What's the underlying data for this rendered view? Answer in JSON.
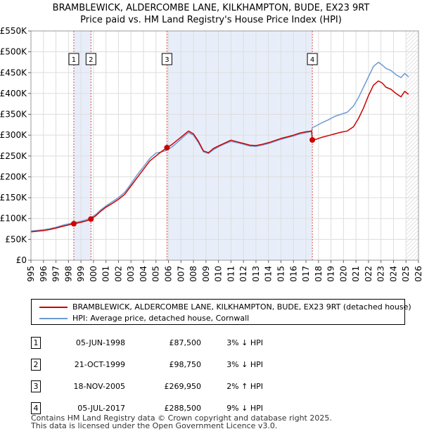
{
  "title_line1": "BRAMBLEWICK, ALDERCOMBE LANE, KILKHAMPTON, BUDE, EX23 9RT",
  "title_line2": "Price paid vs. HM Land Registry's House Price Index (HPI)",
  "chart_data": {
    "type": "line",
    "xlim": [
      1995,
      2026
    ],
    "ylim": [
      0,
      550000
    ],
    "y_ticks": [
      0,
      50000,
      100000,
      150000,
      200000,
      250000,
      300000,
      350000,
      400000,
      450000,
      500000,
      550000
    ],
    "y_tick_labels": [
      "£0",
      "£50K",
      "£100K",
      "£150K",
      "£200K",
      "£250K",
      "£300K",
      "£350K",
      "£400K",
      "£450K",
      "£500K",
      "£550K"
    ],
    "x_ticks": [
      1995,
      1996,
      1997,
      1998,
      1999,
      2000,
      2001,
      2002,
      2003,
      2004,
      2005,
      2006,
      2007,
      2008,
      2009,
      2010,
      2011,
      2012,
      2013,
      2014,
      2015,
      2016,
      2017,
      2018,
      2019,
      2020,
      2021,
      2022,
      2023,
      2024,
      2025,
      2026
    ],
    "shaded_ranges": [
      [
        1998.43,
        1999.8
      ],
      [
        2005.88,
        2017.51
      ]
    ],
    "future_hatch_from": 2025.0,
    "series": [
      {
        "name": "BRAMBLEWICK, ALDERCOMBE LANE, KILKHAMPTON, BUDE, EX23 9RT (detached house)",
        "color": "#cc0000",
        "x": [
          1995.0,
          1995.5,
          1996.0,
          1996.5,
          1997.0,
          1997.5,
          1998.0,
          1998.43,
          1999.0,
          1999.5,
          1999.8,
          2000.2,
          2000.6,
          2001.0,
          2001.5,
          2002.0,
          2002.5,
          2003.0,
          2003.5,
          2004.0,
          2004.5,
          2005.0,
          2005.5,
          2005.88,
          2006.3,
          2006.8,
          2007.2,
          2007.6,
          2008.0,
          2008.4,
          2008.8,
          2009.2,
          2009.6,
          2010.0,
          2010.5,
          2011.0,
          2011.5,
          2012.0,
          2012.5,
          2013.0,
          2013.5,
          2014.0,
          2014.5,
          2015.0,
          2015.5,
          2016.0,
          2016.5,
          2017.0,
          2017.45,
          2017.51,
          2017.8,
          2018.3,
          2018.8,
          2019.3,
          2019.8,
          2020.3,
          2020.8,
          2021.2,
          2021.6,
          2022.0,
          2022.4,
          2022.8,
          2023.1,
          2023.4,
          2023.8,
          2024.2,
          2024.6,
          2024.9,
          2025.2
        ],
        "y": [
          68000,
          69500,
          71000,
          73500,
          77000,
          81000,
          84500,
          87500,
          91000,
          95000,
          98750,
          107000,
          118000,
          127000,
          136000,
          146000,
          158000,
          178000,
          198000,
          218000,
          238000,
          250000,
          262000,
          269950,
          278000,
          290000,
          300000,
          310000,
          303000,
          285000,
          262000,
          258000,
          268000,
          274000,
          281000,
          288000,
          284000,
          280000,
          276000,
          275000,
          278000,
          282000,
          287000,
          292000,
          296000,
          300000,
          305000,
          308000,
          310000,
          288500,
          290000,
          295000,
          299000,
          303000,
          307000,
          310000,
          320000,
          340000,
          365000,
          395000,
          420000,
          430000,
          425000,
          415000,
          410000,
          400000,
          392000,
          405000,
          398000
        ]
      },
      {
        "name": "HPI: Average price, detached house, Cornwall",
        "color": "#6b9bd2",
        "x": [
          1995.0,
          1995.5,
          1996.0,
          1996.5,
          1997.0,
          1997.5,
          1998.0,
          1998.43,
          1999.0,
          1999.5,
          1999.8,
          2000.2,
          2000.6,
          2001.0,
          2001.5,
          2002.0,
          2002.5,
          2003.0,
          2003.5,
          2004.0,
          2004.5,
          2005.0,
          2005.5,
          2005.88,
          2006.3,
          2006.8,
          2007.2,
          2007.6,
          2008.0,
          2008.4,
          2008.8,
          2009.2,
          2009.6,
          2010.0,
          2010.5,
          2011.0,
          2011.5,
          2012.0,
          2012.5,
          2013.0,
          2013.5,
          2014.0,
          2014.5,
          2015.0,
          2015.5,
          2016.0,
          2016.5,
          2017.0,
          2017.45,
          2017.51,
          2017.8,
          2018.3,
          2018.8,
          2019.3,
          2019.8,
          2020.3,
          2020.8,
          2021.2,
          2021.6,
          2022.0,
          2022.4,
          2022.8,
          2023.1,
          2023.4,
          2023.8,
          2024.2,
          2024.6,
          2024.9,
          2025.2
        ],
        "y": [
          70000,
          71500,
          73000,
          75500,
          79000,
          83500,
          87000,
          90000,
          93500,
          97500,
          101500,
          110000,
          121000,
          130000,
          140000,
          150000,
          163000,
          183000,
          205000,
          224000,
          244000,
          257000,
          260000,
          264000,
          272000,
          285000,
          296000,
          306000,
          300000,
          282000,
          260000,
          256000,
          265000,
          272000,
          279000,
          285000,
          282000,
          278000,
          274000,
          273000,
          276000,
          280000,
          285000,
          290000,
          294000,
          298000,
          303000,
          306000,
          309000,
          318000,
          322000,
          330000,
          337000,
          345000,
          350000,
          355000,
          370000,
          390000,
          415000,
          440000,
          465000,
          475000,
          468000,
          460000,
          455000,
          445000,
          438000,
          448000,
          440000
        ]
      }
    ],
    "sales_points": [
      {
        "label": "1",
        "x": 1998.43,
        "y": 87500
      },
      {
        "label": "2",
        "x": 1999.8,
        "y": 98750
      },
      {
        "label": "3",
        "x": 2005.88,
        "y": 269950
      },
      {
        "label": "4",
        "x": 2017.51,
        "y": 288500
      }
    ]
  },
  "legend": {
    "property_label": "BRAMBLEWICK, ALDERCOMBE LANE, KILKHAMPTON, BUDE, EX23 9RT (detached house)",
    "hpi_label": "HPI: Average price, detached house, Cornwall",
    "property_color": "#cc0000",
    "hpi_color": "#6b9bd2"
  },
  "sales": [
    {
      "num": "1",
      "date": "05-JUN-1998",
      "price": "£87,500",
      "hpi": "3% ↓ HPI"
    },
    {
      "num": "2",
      "date": "21-OCT-1999",
      "price": "£98,750",
      "hpi": "3% ↓ HPI"
    },
    {
      "num": "3",
      "date": "18-NOV-2005",
      "price": "£269,950",
      "hpi": "2% ↑ HPI"
    },
    {
      "num": "4",
      "date": "05-JUL-2017",
      "price": "£288,500",
      "hpi": "9% ↓ HPI"
    }
  ],
  "footer_line1": "Contains HM Land Registry data © Crown copyright and database right 2025.",
  "footer_line2": "This data is licensed under the Open Government Licence v3.0."
}
